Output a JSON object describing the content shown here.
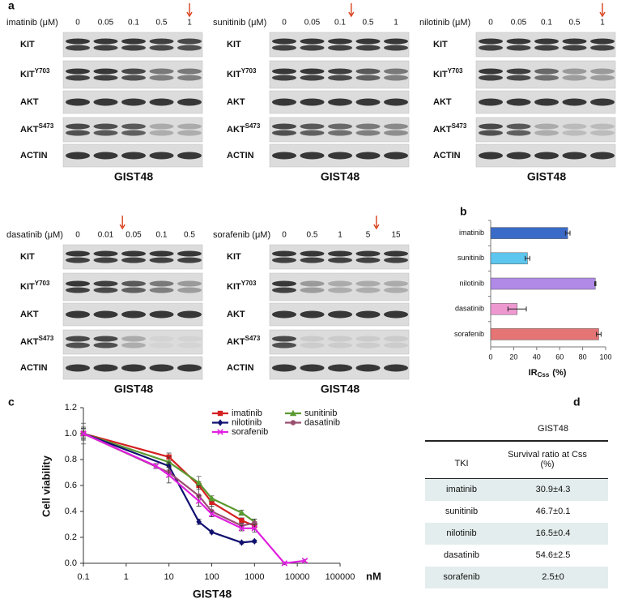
{
  "panel_a": {
    "label": "a",
    "groups": [
      {
        "header": "imatinib (μM)",
        "concentrations": [
          "0",
          "0.05",
          "0.1",
          "0.5",
          "1"
        ],
        "rows": [
          {
            "label": "KIT"
          },
          {
            "label": "KIT",
            "sup": "Y703"
          },
          {
            "label": "AKT"
          },
          {
            "label": "AKT",
            "sup": "S473"
          },
          {
            "label": "ACTIN"
          }
        ],
        "cell_line": "GIST48"
      },
      {
        "header": "sunitinib (μM)",
        "concentrations": [
          "0",
          "0.05",
          "0.1",
          "0.5",
          "1"
        ],
        "rows": [
          {
            "label": "KIT"
          },
          {
            "label": "KIT",
            "sup": "Y703"
          },
          {
            "label": "AKT"
          },
          {
            "label": "AKT",
            "sup": "S473"
          },
          {
            "label": "ACTIN"
          }
        ],
        "cell_line": "GIST48"
      },
      {
        "header": "nilotinib (μM)",
        "concentrations": [
          "0",
          "0.05",
          "0.1",
          "0.5",
          "1"
        ],
        "rows": [
          {
            "label": "KIT"
          },
          {
            "label": "KIT",
            "sup": "Y703"
          },
          {
            "label": "AKT"
          },
          {
            "label": "AKT",
            "sup": "S473"
          },
          {
            "label": "ACTIN"
          }
        ],
        "cell_line": "GIST48"
      },
      {
        "header": "dasatinib (μM)",
        "concentrations": [
          "0",
          "0.01",
          "0.05",
          "0.1",
          "0.5"
        ],
        "rows": [
          {
            "label": "KIT"
          },
          {
            "label": "KIT",
            "sup": "Y703"
          },
          {
            "label": "AKT"
          },
          {
            "label": "AKT",
            "sup": "S473"
          },
          {
            "label": "ACTIN"
          }
        ],
        "cell_line": "GIST48"
      },
      {
        "header": "sorafenib (μM)",
        "concentrations": [
          "0",
          "0.5",
          "1",
          "5",
          "15"
        ],
        "rows": [
          {
            "label": "KIT"
          },
          {
            "label": "KIT",
            "sup": "Y703"
          },
          {
            "label": "AKT"
          },
          {
            "label": "AKT",
            "sup": "S473"
          },
          {
            "label": "ACTIN"
          }
        ],
        "cell_line": "GIST48"
      }
    ]
  },
  "chart_data": [
    {
      "type": "bar",
      "orientation": "horizontal",
      "panel_label": "b",
      "categories": [
        "imatinib",
        "sunitinib",
        "nilotinib",
        "dasatinib",
        "sorafenib"
      ],
      "values": [
        67,
        32,
        91,
        23,
        94
      ],
      "errors": [
        2,
        2,
        0.5,
        8,
        2
      ],
      "colors": [
        "#3b6bc8",
        "#5cc6ef",
        "#b08ae6",
        "#ee98d0",
        "#e57474"
      ],
      "xlim": [
        0,
        100
      ],
      "xticks": [
        0,
        20,
        40,
        60,
        80,
        100
      ],
      "xlabel": "IR",
      "xlabel_sub": "Css",
      "xlabel_unit": "(%)"
    },
    {
      "type": "line",
      "panel_label": "c",
      "xscale": "log",
      "xlabel": "GIST48",
      "x_unit": "nM",
      "ylabel": "Cell viability",
      "xlim": [
        0.1,
        100000
      ],
      "ylim": [
        0,
        1.2
      ],
      "xticks": [
        0.1,
        1,
        10,
        100,
        1000,
        10000,
        100000
      ],
      "yticks": [
        {
          "value": 0,
          "label": "0.0"
        },
        0.2,
        0.4,
        0.6,
        0.8,
        {
          "value": 1,
          "label": "1.0"
        },
        1.2
      ],
      "series": [
        {
          "name": "imatinib",
          "color": "#d42020",
          "marker": "square",
          "x": [
            0.1,
            10,
            50,
            100,
            500,
            1000
          ],
          "values": [
            1.0,
            0.82,
            0.6,
            0.47,
            0.33,
            0.29
          ],
          "errors": [
            0.04,
            0.03,
            0.03,
            0.03,
            0.02,
            0.03
          ]
        },
        {
          "name": "sunitinib",
          "color": "#5a9a30",
          "marker": "triangle",
          "x": [
            0.1,
            10,
            50,
            100,
            500,
            1000
          ],
          "values": [
            1.0,
            0.78,
            0.62,
            0.5,
            0.39,
            0.32
          ],
          "errors": [
            0.03,
            0.04,
            0.05,
            0.02,
            0.02,
            0.02
          ]
        },
        {
          "name": "nilotinib",
          "color": "#101070",
          "marker": "diamond",
          "x": [
            0.1,
            10,
            50,
            100,
            500,
            1000
          ],
          "values": [
            1.0,
            0.75,
            0.32,
            0.24,
            0.16,
            0.17
          ],
          "errors": [
            0.05,
            0.03,
            0.02,
            0.01,
            0.01,
            0.01
          ]
        },
        {
          "name": "dasatinib",
          "color": "#9a5070",
          "marker": "circle",
          "x": [
            0.1,
            10,
            50,
            100,
            500,
            1000
          ],
          "values": [
            1.0,
            0.7,
            0.52,
            0.4,
            0.29,
            0.31
          ],
          "errors": [
            0.08,
            0.08,
            0.08,
            0.04,
            0.02,
            0.03
          ]
        },
        {
          "name": "sorafenib",
          "color": "#e020e0",
          "marker": "cross",
          "x": [
            0.1,
            5,
            10,
            50,
            100,
            500,
            1000,
            5000,
            15000
          ],
          "values": [
            1.0,
            0.75,
            0.68,
            0.48,
            0.38,
            0.27,
            0.27,
            0.0,
            0.02
          ],
          "errors": [
            0.04,
            0.02,
            0.06,
            0.04,
            0.02,
            0.02,
            0.03,
            0.01,
            0.01
          ]
        }
      ]
    }
  ],
  "panel_d": {
    "label": "d",
    "table": {
      "group_header": "GIST48",
      "columns": [
        "TKI",
        "Survival ratio at Css (%)"
      ],
      "rows": [
        [
          "imatinib",
          "30.9±4.3"
        ],
        [
          "sunitinib",
          "46.7±0.1"
        ],
        [
          "nilotinib",
          "16.5±0.4"
        ],
        [
          "dasatinib",
          "54.6±2.5"
        ],
        [
          "sorafenib",
          "2.5±0"
        ]
      ]
    }
  }
}
